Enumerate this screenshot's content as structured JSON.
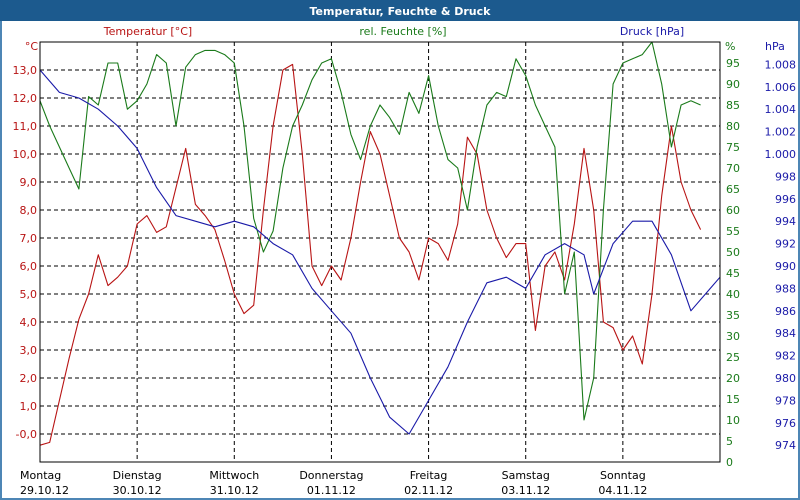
{
  "chart_data": {
    "type": "line",
    "title": "Temperatur, Feuchte & Druck",
    "colors": {
      "title_bar": "#1c5a8e",
      "frame": "#4d86b5",
      "temperature": "#b81414",
      "humidity": "#1a7a1a",
      "pressure": "#1a1aa8",
      "grid": "#000000",
      "days": "#000000"
    },
    "x": {
      "day_labels": [
        "Montag",
        "Dienstag",
        "Mittwoch",
        "Donnerstag",
        "Freitag",
        "Samstag",
        "Sonntag"
      ],
      "date_labels": [
        "29.10.12",
        "30.10.12",
        "31.10.12",
        "01.11.12",
        "02.11.12",
        "03.11.12",
        "04.11.12"
      ],
      "range": [
        0,
        7
      ],
      "unit": "days since 29.10.12 00:00"
    },
    "axes": {
      "temperature": {
        "label": "Temperatur [°C]",
        "unit": "°C",
        "ylim": [
          -1,
          14
        ],
        "tick_labels": [
          "13,0",
          "12,0",
          "11,0",
          "10,0",
          "9,0",
          "8,0",
          "7,0",
          "6,0",
          "5,0",
          "4,0",
          "3,0",
          "2,0",
          "1,0",
          "-0,0"
        ]
      },
      "humidity": {
        "label": "rel. Feuchte [%]",
        "unit": "%",
        "ylim": [
          0,
          100
        ],
        "tick_labels": [
          "95",
          "90",
          "85",
          "80",
          "75",
          "70",
          "65",
          "60",
          "55",
          "50",
          "45",
          "40",
          "35",
          "30",
          "25",
          "20",
          "15",
          "10",
          "5",
          "0"
        ]
      },
      "pressure": {
        "label": "Druck [hPa]",
        "unit": "hPa",
        "ylim": [
          972.5,
          1010
        ],
        "tick_labels": [
          "1.008",
          "1.006",
          "1.004",
          "1.002",
          "1.000",
          "998",
          "996",
          "994",
          "992",
          "990",
          "988",
          "986",
          "984",
          "982",
          "980",
          "978",
          "976",
          "974"
        ]
      }
    },
    "series": [
      {
        "name": "Temperatur",
        "axis": "temperature",
        "points": [
          [
            0,
            -0.4
          ],
          [
            0.1,
            -0.3
          ],
          [
            0.2,
            1.2
          ],
          [
            0.3,
            2.7
          ],
          [
            0.4,
            4.1
          ],
          [
            0.5,
            5.0
          ],
          [
            0.6,
            6.4
          ],
          [
            0.7,
            5.3
          ],
          [
            0.8,
            5.6
          ],
          [
            0.9,
            6.0
          ],
          [
            1.0,
            7.5
          ],
          [
            1.1,
            7.8
          ],
          [
            1.2,
            7.2
          ],
          [
            1.3,
            7.4
          ],
          [
            1.4,
            8.8
          ],
          [
            1.5,
            10.2
          ],
          [
            1.6,
            8.2
          ],
          [
            1.7,
            7.8
          ],
          [
            1.8,
            7.3
          ],
          [
            1.9,
            6.2
          ],
          [
            2.0,
            5.0
          ],
          [
            2.1,
            4.3
          ],
          [
            2.2,
            4.6
          ],
          [
            2.3,
            8.0
          ],
          [
            2.4,
            11.0
          ],
          [
            2.5,
            13.0
          ],
          [
            2.6,
            13.2
          ],
          [
            2.7,
            10.0
          ],
          [
            2.8,
            6.0
          ],
          [
            2.9,
            5.3
          ],
          [
            3.0,
            6.0
          ],
          [
            3.1,
            5.5
          ],
          [
            3.2,
            7.0
          ],
          [
            3.3,
            9.0
          ],
          [
            3.4,
            10.8
          ],
          [
            3.5,
            10.0
          ],
          [
            3.6,
            8.5
          ],
          [
            3.7,
            7.0
          ],
          [
            3.8,
            6.5
          ],
          [
            3.9,
            5.5
          ],
          [
            4.0,
            7.0
          ],
          [
            4.1,
            6.8
          ],
          [
            4.2,
            6.2
          ],
          [
            4.3,
            7.5
          ],
          [
            4.4,
            10.6
          ],
          [
            4.5,
            10.0
          ],
          [
            4.6,
            8.0
          ],
          [
            4.7,
            7.0
          ],
          [
            4.8,
            6.3
          ],
          [
            4.9,
            6.8
          ],
          [
            5.0,
            6.8
          ],
          [
            5.1,
            3.7
          ],
          [
            5.2,
            6.0
          ],
          [
            5.3,
            6.5
          ],
          [
            5.4,
            5.5
          ],
          [
            5.5,
            7.5
          ],
          [
            5.6,
            10.2
          ],
          [
            5.7,
            8.0
          ],
          [
            5.8,
            4.0
          ],
          [
            5.9,
            3.8
          ],
          [
            6.0,
            3.0
          ],
          [
            6.1,
            3.5
          ],
          [
            6.2,
            2.5
          ],
          [
            6.3,
            5.0
          ],
          [
            6.4,
            8.5
          ],
          [
            6.5,
            11.0
          ],
          [
            6.6,
            9.0
          ],
          [
            6.7,
            8.0
          ],
          [
            6.8,
            7.3
          ]
        ]
      },
      {
        "name": "rel. Feuchte",
        "axis": "humidity",
        "points": [
          [
            0,
            86
          ],
          [
            0.1,
            80
          ],
          [
            0.2,
            75
          ],
          [
            0.3,
            70
          ],
          [
            0.4,
            65
          ],
          [
            0.5,
            87
          ],
          [
            0.6,
            85
          ],
          [
            0.7,
            95
          ],
          [
            0.8,
            95
          ],
          [
            0.9,
            84
          ],
          [
            1.0,
            86
          ],
          [
            1.1,
            90
          ],
          [
            1.2,
            97
          ],
          [
            1.3,
            95
          ],
          [
            1.4,
            80
          ],
          [
            1.5,
            94
          ],
          [
            1.6,
            97
          ],
          [
            1.7,
            98
          ],
          [
            1.8,
            98
          ],
          [
            1.9,
            97
          ],
          [
            2.0,
            95
          ],
          [
            2.1,
            80
          ],
          [
            2.2,
            58
          ],
          [
            2.3,
            50
          ],
          [
            2.4,
            55
          ],
          [
            2.5,
            70
          ],
          [
            2.6,
            80
          ],
          [
            2.7,
            85
          ],
          [
            2.8,
            91
          ],
          [
            2.9,
            95
          ],
          [
            3.0,
            96
          ],
          [
            3.1,
            88
          ],
          [
            3.2,
            78
          ],
          [
            3.3,
            72
          ],
          [
            3.4,
            80
          ],
          [
            3.5,
            85
          ],
          [
            3.6,
            82
          ],
          [
            3.7,
            78
          ],
          [
            3.8,
            88
          ],
          [
            3.9,
            83
          ],
          [
            4.0,
            92
          ],
          [
            4.1,
            80
          ],
          [
            4.2,
            72
          ],
          [
            4.3,
            70
          ],
          [
            4.4,
            60
          ],
          [
            4.5,
            75
          ],
          [
            4.6,
            85
          ],
          [
            4.7,
            88
          ],
          [
            4.8,
            87
          ],
          [
            4.9,
            96
          ],
          [
            5.0,
            92
          ],
          [
            5.1,
            85
          ],
          [
            5.2,
            80
          ],
          [
            5.3,
            75
          ],
          [
            5.4,
            40
          ],
          [
            5.5,
            50
          ],
          [
            5.6,
            10
          ],
          [
            5.7,
            20
          ],
          [
            5.8,
            60
          ],
          [
            5.9,
            90
          ],
          [
            6.0,
            95
          ],
          [
            6.1,
            96
          ],
          [
            6.2,
            97
          ],
          [
            6.3,
            100
          ],
          [
            6.4,
            90
          ],
          [
            6.5,
            75
          ],
          [
            6.6,
            85
          ],
          [
            6.7,
            86
          ],
          [
            6.8,
            85
          ]
        ]
      },
      {
        "name": "Druck",
        "axis": "pressure",
        "points": [
          [
            0,
            1007.5
          ],
          [
            0.2,
            1005.5
          ],
          [
            0.4,
            1005
          ],
          [
            0.6,
            1004
          ],
          [
            0.8,
            1002.5
          ],
          [
            1.0,
            1000.5
          ],
          [
            1.2,
            997
          ],
          [
            1.4,
            994.5
          ],
          [
            1.6,
            994
          ],
          [
            1.8,
            993.5
          ],
          [
            2.0,
            994
          ],
          [
            2.2,
            993.5
          ],
          [
            2.4,
            992
          ],
          [
            2.6,
            991
          ],
          [
            2.8,
            988
          ],
          [
            3.0,
            986
          ],
          [
            3.2,
            984
          ],
          [
            3.4,
            980
          ],
          [
            3.6,
            976.5
          ],
          [
            3.8,
            975
          ],
          [
            4.0,
            978
          ],
          [
            4.2,
            981
          ],
          [
            4.4,
            985
          ],
          [
            4.6,
            988.5
          ],
          [
            4.8,
            989
          ],
          [
            5.0,
            988
          ],
          [
            5.2,
            991
          ],
          [
            5.4,
            992
          ],
          [
            5.6,
            991
          ],
          [
            5.7,
            987.5
          ],
          [
            5.9,
            992
          ],
          [
            6.1,
            994
          ],
          [
            6.3,
            994
          ],
          [
            6.5,
            991
          ],
          [
            6.7,
            986
          ],
          [
            6.9,
            988
          ],
          [
            7.0,
            989
          ]
        ]
      }
    ],
    "grid": true
  }
}
